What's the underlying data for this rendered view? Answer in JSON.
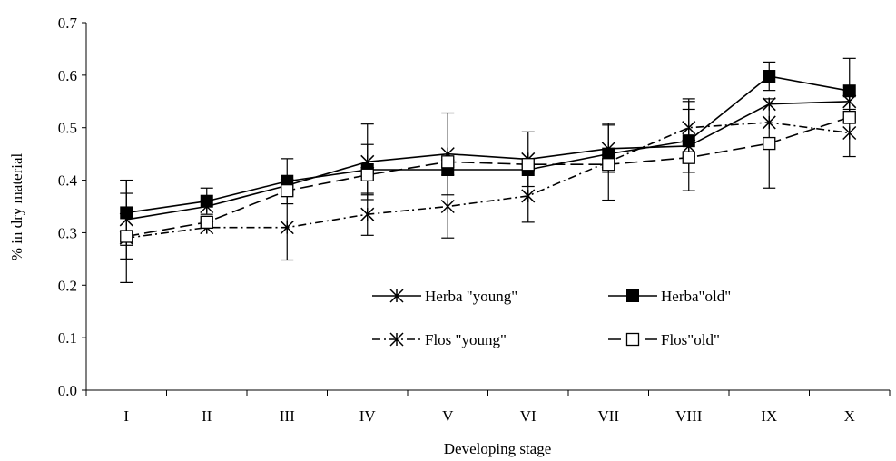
{
  "chart_data": {
    "type": "line",
    "title": "",
    "xlabel": "Developing stage",
    "ylabel": "% in dry material",
    "ylim": [
      0.0,
      0.7
    ],
    "yticks": [
      "0.0",
      "0.1",
      "0.2",
      "0.3",
      "0.4",
      "0.5",
      "0.6",
      "0.7"
    ],
    "categories": [
      "I",
      "II",
      "III",
      "IV",
      "V",
      "VI",
      "VII",
      "VIII",
      "IX",
      "X"
    ],
    "grid": false,
    "legend_position": "bottom-right, two columns inside plot",
    "series": [
      {
        "name": "Herba \"young\"",
        "line_style": "solid",
        "marker": "star",
        "color": "#000000",
        "values": [
          0.325,
          0.35,
          0.39,
          0.435,
          0.45,
          0.44,
          0.46,
          0.465,
          0.545,
          0.55
        ],
        "error": [
          0.075,
          null,
          null,
          0.072,
          0.078,
          0.052,
          0.045,
          0.085,
          null,
          null
        ]
      },
      {
        "name": "Herba\"old\"",
        "line_style": "solid",
        "marker": "filled-square",
        "color": "#000000",
        "values": [
          0.338,
          0.36,
          0.398,
          0.42,
          0.42,
          0.42,
          0.45,
          0.475,
          0.598,
          0.57
        ],
        "error": [
          0.062,
          0.025,
          0.043,
          0.048,
          null,
          null,
          null,
          0.06,
          0.027,
          0.062
        ]
      },
      {
        "name": "Flos \"young\"",
        "line_style": "dash-dot",
        "marker": "star",
        "color": "#000000",
        "values": [
          0.29,
          0.31,
          0.31,
          0.335,
          0.35,
          0.37,
          0.435,
          0.5,
          0.51,
          0.49
        ],
        "error": [
          0.085,
          null,
          0.062,
          0.04,
          0.06,
          0.05,
          0.073,
          0.055,
          null,
          0.045
        ]
      },
      {
        "name": "Flos\"old\"",
        "line_style": "long-dash",
        "marker": "open-square",
        "color": "#000000",
        "values": [
          0.293,
          0.32,
          0.38,
          0.41,
          0.435,
          0.43,
          0.43,
          0.443,
          0.47,
          0.52
        ],
        "error": [
          null,
          null,
          null,
          null,
          null,
          null,
          null,
          null,
          0.085,
          null
        ]
      }
    ]
  }
}
